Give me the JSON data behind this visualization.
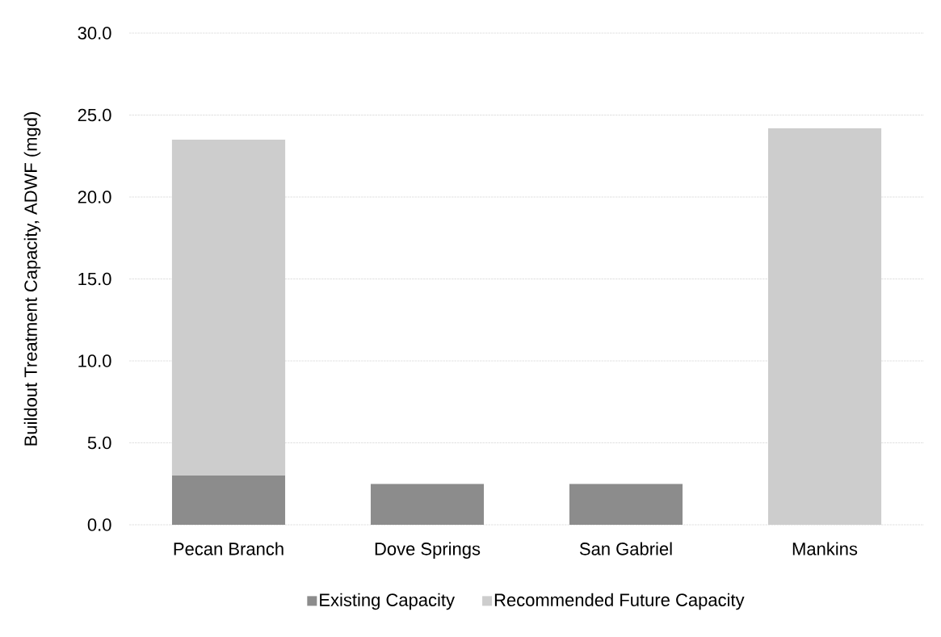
{
  "chart_data": {
    "type": "bar",
    "stacked": true,
    "categories": [
      "Pecan Branch",
      "Dove Springs",
      "San Gabriel",
      "Mankins"
    ],
    "series": [
      {
        "name": "Existing Capacity",
        "color": "#8c8c8c",
        "values": [
          3.0,
          2.5,
          2.5,
          0
        ]
      },
      {
        "name": "Recommended Future Capacity",
        "color": "#cdcdcd",
        "values": [
          20.5,
          0,
          0,
          24.2
        ]
      }
    ],
    "ylabel": "Buildout Treatment Capacity, ADWF (mgd)",
    "ylim": [
      0,
      30
    ],
    "yticks": [
      {
        "value": 0,
        "label": "0.0"
      },
      {
        "value": 5,
        "label": "5.0"
      },
      {
        "value": 10,
        "label": "10.0"
      },
      {
        "value": 15,
        "label": "15.0"
      },
      {
        "value": 20,
        "label": "20.0"
      },
      {
        "value": 25,
        "label": "25.0"
      },
      {
        "value": 30,
        "label": "30.0"
      }
    ],
    "grid": "y",
    "legend": "bottom"
  }
}
